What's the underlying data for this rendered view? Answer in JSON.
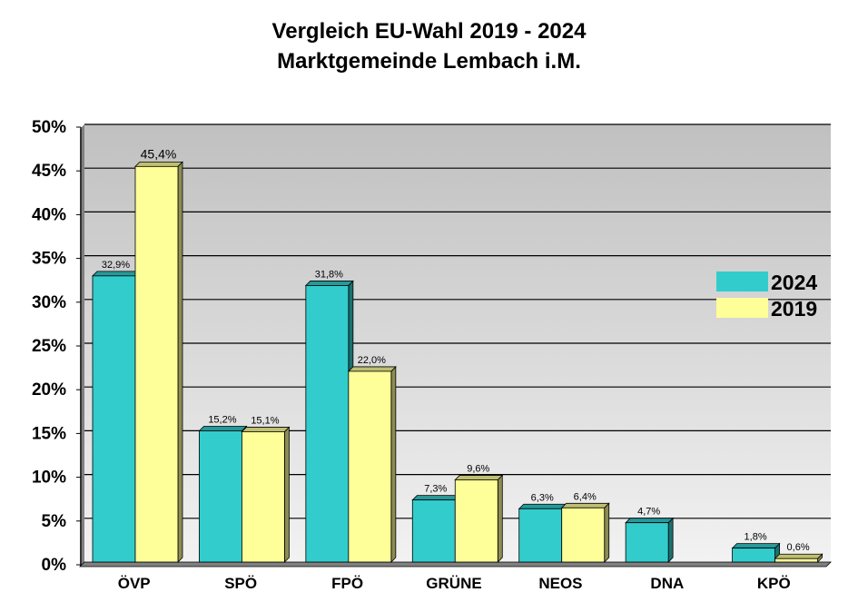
{
  "chart_data": {
    "type": "bar",
    "title": "Vergleich EU-Wahl 2019 - 2024",
    "subtitle": "Marktgemeinde Lembach i.M.",
    "categories": [
      "ÖVP",
      "SPÖ",
      "FPÖ",
      "GRÜNE",
      "NEOS",
      "DNA",
      "KPÖ"
    ],
    "series": [
      {
        "name": "2024",
        "color": "#33cccc",
        "values": [
          32.9,
          15.2,
          31.8,
          7.3,
          6.3,
          4.7,
          1.8
        ],
        "labels": [
          "32,9%",
          "15,2%",
          "31,8%",
          "7,3%",
          "6,3%",
          "4,7%",
          "1,8%"
        ]
      },
      {
        "name": "2019",
        "color": "#ffff99",
        "values": [
          45.4,
          15.1,
          22.0,
          9.6,
          6.4,
          null,
          0.6
        ],
        "labels": [
          "45,4%",
          "15,1%",
          "22,0%",
          "9,6%",
          "6,4%",
          "",
          "0,6%"
        ]
      }
    ],
    "ylim": [
      0,
      50
    ],
    "yticks": [
      "0%",
      "5%",
      "10%",
      "15%",
      "20%",
      "25%",
      "30%",
      "35%",
      "40%",
      "45%",
      "50%"
    ],
    "grid": true,
    "legend": "right",
    "plot_background": "#c0c0c0"
  }
}
